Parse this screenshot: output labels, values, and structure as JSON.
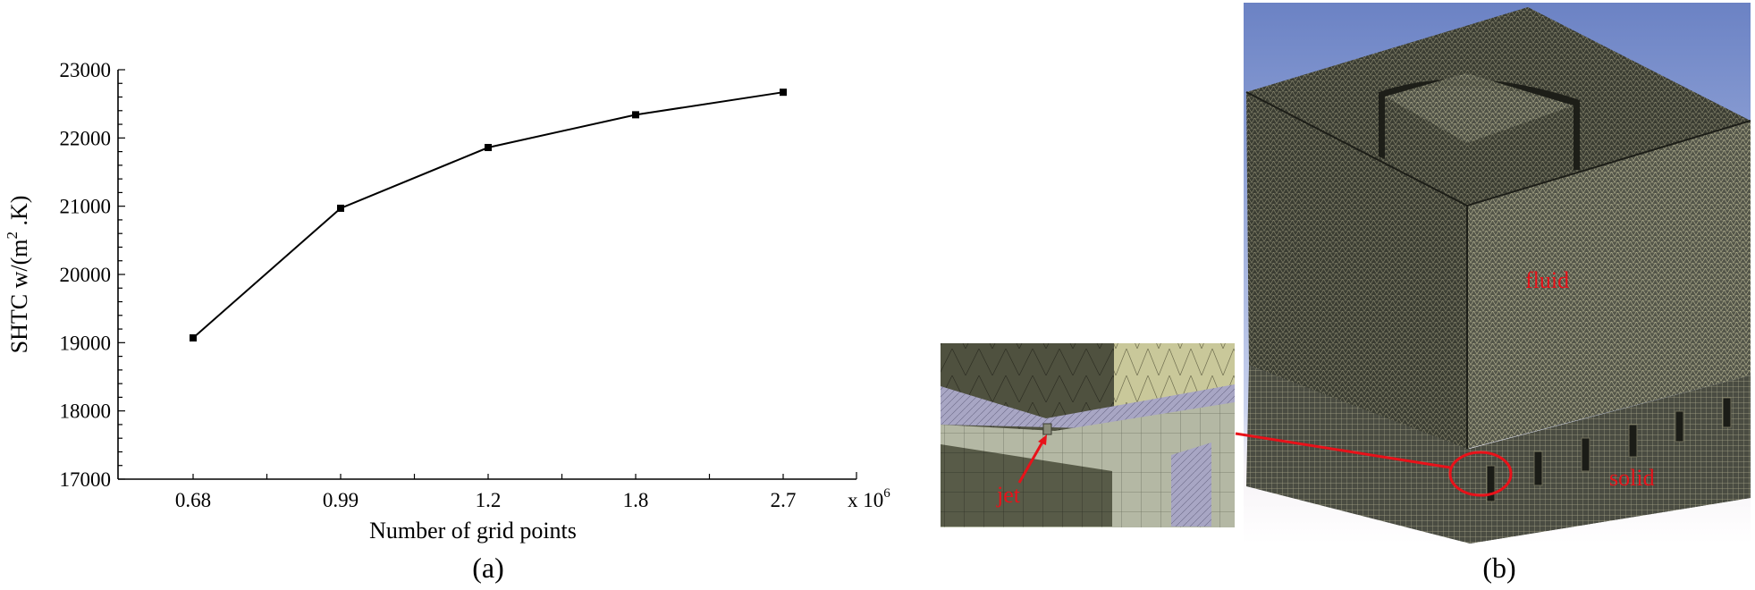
{
  "chart_data": {
    "type": "line",
    "title": "",
    "xlabel": "Number of grid points",
    "x_multiplier": "x 10",
    "x_multiplier_exponent": "6",
    "ylabel_main": "SHTC w/(m",
    "ylabel_sup": "2",
    "ylabel_tail": " .K)",
    "categories": [
      "0.68",
      "0.99",
      "1.2",
      "1.8",
      "2.7"
    ],
    "values": [
      19070,
      20970,
      21860,
      22340,
      22670
    ],
    "ylim": [
      17000,
      23000
    ],
    "yticks": [
      "17000",
      "18000",
      "19000",
      "20000",
      "21000",
      "22000",
      "23000"
    ],
    "y_minor_step": 200,
    "grid": false,
    "marker": "square",
    "line_color": "#000000"
  },
  "captions": {
    "a": "(a)",
    "b": "(b)"
  },
  "mesh_image": {
    "labels": {
      "fluid": "fluid",
      "solid": "solid",
      "jet": "jet"
    },
    "label_color": "#e8121a",
    "background_top": "#6b82c4",
    "background_bottom": "#c9d2ee"
  }
}
